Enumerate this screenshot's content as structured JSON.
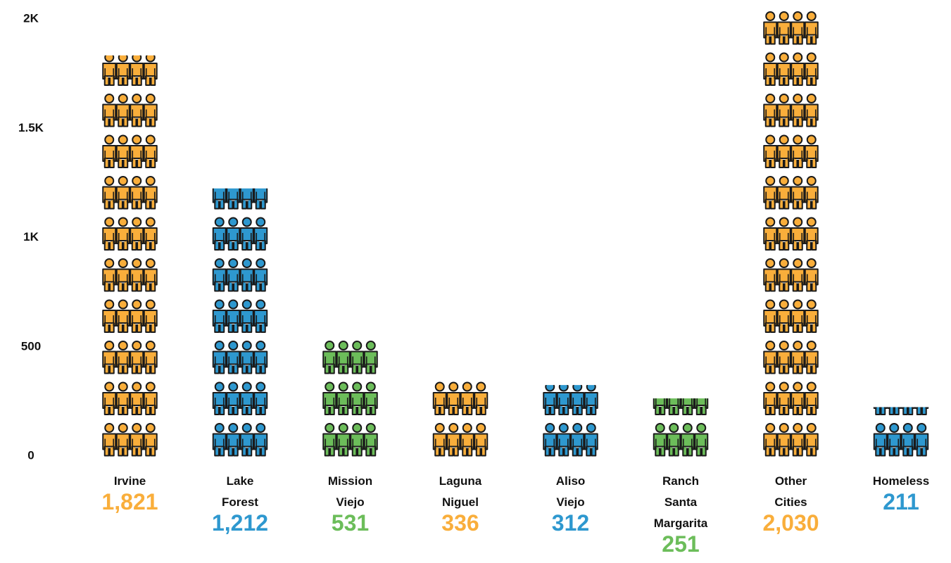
{
  "chart_data": {
    "type": "bar",
    "style": "pictograph",
    "icon": "person-icon",
    "categories": [
      [
        "Irvine"
      ],
      [
        "Lake",
        "Forest"
      ],
      [
        "Mission",
        "Viejo"
      ],
      [
        "Laguna",
        "Niguel"
      ],
      [
        "Aliso",
        "Viejo"
      ],
      [
        "Ranch",
        "Santa",
        "Margarita"
      ],
      [
        "Other",
        "Cities"
      ],
      [
        "Homeless"
      ]
    ],
    "values": [
      1821,
      1212,
      531,
      336,
      312,
      251,
      2030,
      211
    ],
    "value_labels": [
      "1,821",
      "1,212",
      "531",
      "336",
      "312",
      "251",
      "2,030",
      "211"
    ],
    "bar_colors": [
      "orange",
      "blue",
      "green",
      "orange",
      "blue",
      "green",
      "orange",
      "blue"
    ],
    "colors": {
      "orange": "#F9AE3B",
      "blue": "#2E98CF",
      "green": "#6CBD5A",
      "outline": "#1a1a1a"
    },
    "yticks": [
      {
        "value": 0,
        "label": "0"
      },
      {
        "value": 500,
        "label": "500"
      },
      {
        "value": 1000,
        "label": "1K"
      },
      {
        "value": 1500,
        "label": "1.5K"
      },
      {
        "value": 2000,
        "label": "2K"
      }
    ],
    "ylim": [
      0,
      2000
    ],
    "grid": false,
    "legend": "none",
    "title": "",
    "xlabel": "",
    "ylabel": ""
  }
}
